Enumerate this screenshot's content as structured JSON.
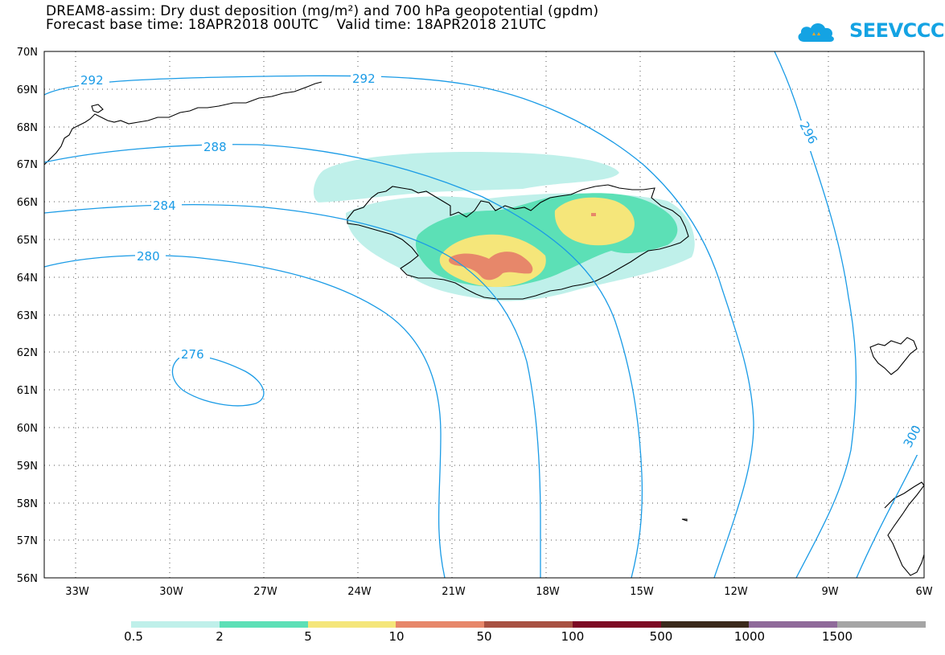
{
  "title": {
    "line1": "DREAM8-assim: Dry dust deposition (mg/m²) and 700 hPa geopotential (gpdm)",
    "line2": "Forecast base time: 18APR2018 00UTC    Valid time: 18APR2018 21UTC"
  },
  "logo": {
    "text": "SEEVCCC",
    "icon": "cloud-icon",
    "color": "#14a3e3"
  },
  "map": {
    "lon_range": [
      -34.5,
      -6
    ],
    "lat_range": [
      56,
      70
    ],
    "lon_labels": [
      "33W",
      "30W",
      "27W",
      "24W",
      "21W",
      "18W",
      "15W",
      "12W",
      "9W",
      "6W"
    ],
    "lat_labels": [
      "70N",
      "69N",
      "68N",
      "67N",
      "66N",
      "65N",
      "64N",
      "63N",
      "62N",
      "61N",
      "60N",
      "59N",
      "58N",
      "57N",
      "56N"
    ],
    "grid": "dotted",
    "coastline_color": "#000000"
  },
  "contours": {
    "color": "#1a9be6",
    "labels": [
      "292",
      "292",
      "288",
      "284",
      "280",
      "276",
      "296",
      "300"
    ]
  },
  "dust_colors": [
    "#bff0ea",
    "#5ce0b6",
    "#f5e67a",
    "#e7876a"
  ],
  "colorbar": {
    "colors": [
      "#bff0ea",
      "#5ce0b6",
      "#f5e67a",
      "#e7876a",
      "#a85142",
      "#7d0a24",
      "#3b2a1c",
      "#8f6a9a",
      "#a5a5a5"
    ],
    "labels": [
      "0.5",
      "2",
      "5",
      "10",
      "50",
      "100",
      "500",
      "1000",
      "1500"
    ]
  }
}
